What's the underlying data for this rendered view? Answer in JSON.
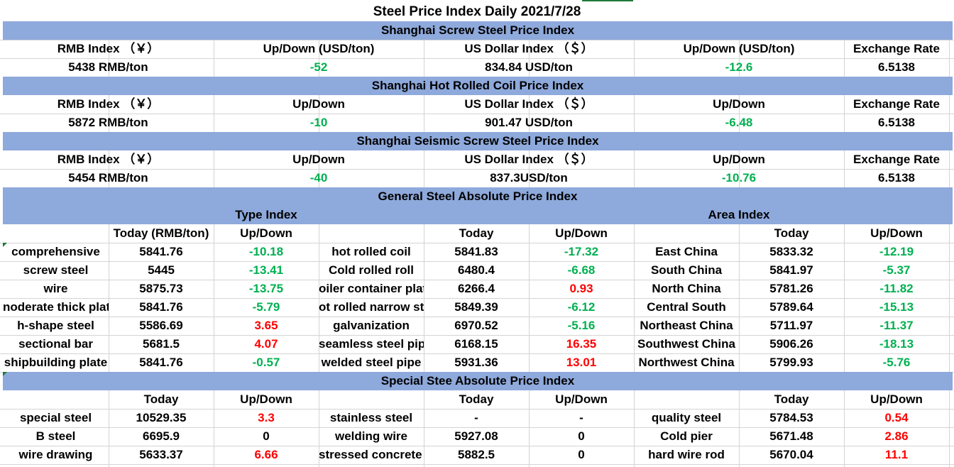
{
  "title": "Steel Price Index Daily  2021/7/28",
  "colors": {
    "band": "#8ea9db",
    "up": "#ff0000",
    "down": "#00b050",
    "grid": "#d4d4d4"
  },
  "sections": [
    {
      "title": "Shanghai Screw Steel Price Index",
      "headers": [
        "RMB Index （￥）",
        "Up/Down (USD/ton)",
        "US Dollar Index （＄）",
        "Up/Down (USD/ton)",
        "Exchange Rate"
      ],
      "values": [
        "5438 RMB/ton",
        "-52",
        "834.84 USD/ton",
        "-12.6",
        "6.5138"
      ]
    },
    {
      "title": "Shanghai Hot Rolled Coil Price Index",
      "headers": [
        "RMB Index （￥）",
        "Up/Down",
        "US Dollar Index （＄）",
        "Up/Down",
        "Exchange Rate"
      ],
      "values": [
        "5872 RMB/ton",
        "-10",
        "901.47 USD/ton",
        "-6.48",
        "6.5138"
      ]
    },
    {
      "title": "Shanghai Seismic Screw Steel Price Index",
      "headers": [
        "RMB Index （￥）",
        "Up/Down",
        "US Dollar Index （＄）",
        "Up/Down",
        "Exchange Rate"
      ],
      "values": [
        "5454 RMB/ton",
        "-40",
        "837.3USD/ton",
        "-10.76",
        "6.5138"
      ]
    }
  ],
  "general": {
    "title": "General Steel Absolute Price Index",
    "type_index_label": "Type Index",
    "area_index_label": "Area Index",
    "col_headers": [
      "Today (RMB/ton)",
      "Up/Down",
      "Today",
      "Up/Down",
      "Today",
      "Up/Down"
    ],
    "rows": [
      [
        "comprehensive",
        "5841.76",
        "-10.18",
        "hot rolled coil",
        "5841.83",
        "-17.32",
        "East China",
        "5833.32",
        "-12.19"
      ],
      [
        "screw steel",
        "5445",
        "-13.41",
        "Cold rolled roll",
        "6480.4",
        "-6.68",
        "South China",
        "5841.97",
        "-5.37"
      ],
      [
        "wire",
        "5875.73",
        "-13.75",
        "oiler container plat",
        "6266.4",
        "0.93",
        "North China",
        "5781.26",
        "-11.82"
      ],
      [
        "noderate thick plat",
        "5841.76",
        "-5.79",
        "ot rolled narrow str",
        "5849.39",
        "-6.12",
        "Central South",
        "5789.64",
        "-15.13"
      ],
      [
        "h-shape steel",
        "5586.69",
        "3.65",
        "galvanization",
        "6970.52",
        "-5.16",
        "Northeast China",
        "5711.97",
        "-11.37"
      ],
      [
        "sectional bar",
        "5681.5",
        "4.07",
        "seamless steel pipe",
        "6168.15",
        "16.35",
        "Southwest China",
        "5906.26",
        "-18.13"
      ],
      [
        "shipbuilding plate",
        "5841.76",
        "-0.57",
        "welded steel pipe",
        "5931.36",
        "13.01",
        "Northwest China",
        "5799.93",
        "-5.76"
      ]
    ]
  },
  "special": {
    "title": "Special Stee Absolute Price Index",
    "col_headers": [
      "Today",
      "Up/Down",
      "Today",
      "Up/Down",
      "Today",
      "Up/Down"
    ],
    "rows": [
      [
        "special steel",
        "10529.35",
        "3.3",
        "stainless steel",
        "-",
        "-",
        "quality steel",
        "5784.53",
        "0.54"
      ],
      [
        "B steel",
        "6695.9",
        "0",
        "welding wire",
        "5927.08",
        "0",
        "Cold pier",
        "5671.48",
        "2.86"
      ],
      [
        "wire drawing",
        "5633.37",
        "6.66",
        "stressed concrete s",
        "5882.5",
        "0",
        "hard wire rod",
        "5670.04",
        "11.1"
      ]
    ]
  }
}
